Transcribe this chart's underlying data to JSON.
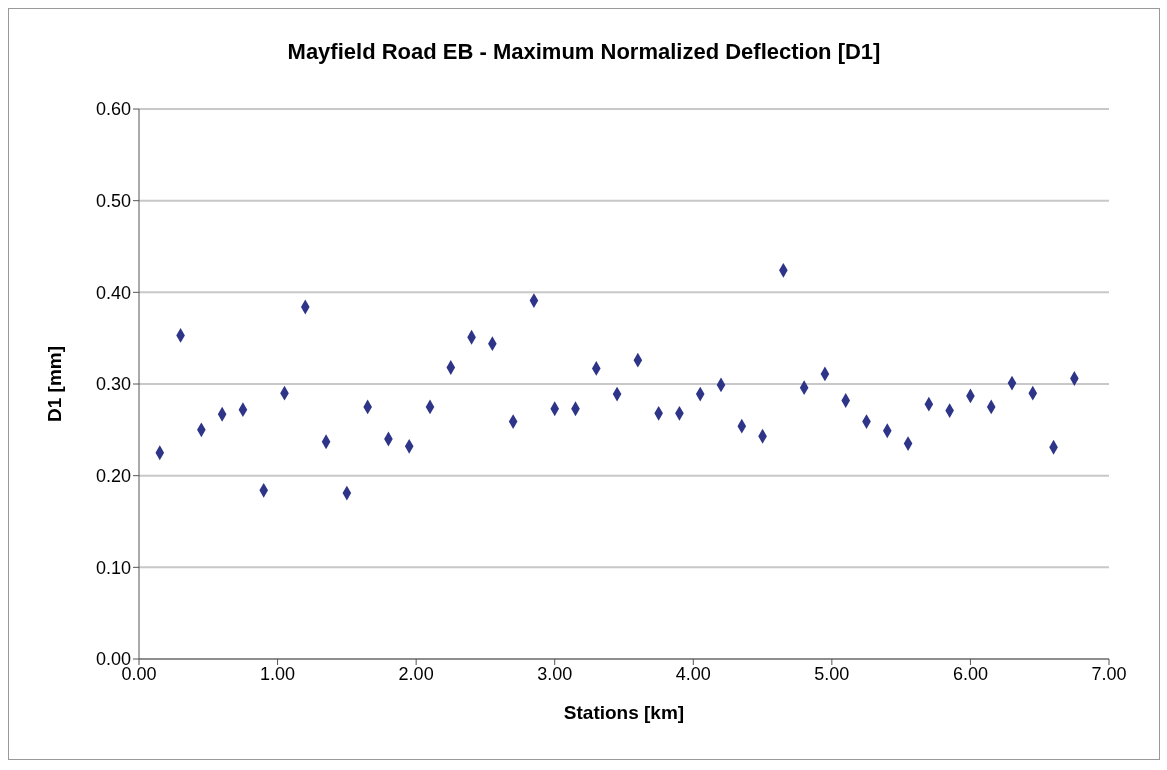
{
  "chart_data": {
    "type": "scatter",
    "title": "Mayfield Road EB - Maximum Normalized Deflection [D1]",
    "xlabel": "Stations [km]",
    "ylabel": "D1 [mm]",
    "x": [
      0.15,
      0.3,
      0.45,
      0.6,
      0.75,
      0.9,
      1.05,
      1.2,
      1.35,
      1.5,
      1.65,
      1.8,
      1.95,
      2.1,
      2.25,
      2.4,
      2.55,
      2.7,
      2.85,
      3.0,
      3.15,
      3.3,
      3.45,
      3.6,
      3.75,
      3.9,
      4.05,
      4.2,
      4.35,
      4.5,
      4.65,
      4.8,
      4.95,
      5.1,
      5.25,
      5.4,
      5.55,
      5.7,
      5.85,
      6.0,
      6.15,
      6.3,
      6.45,
      6.6,
      6.75
    ],
    "series": [
      {
        "color": "#2e3487",
        "values": [
          0.225,
          0.353,
          0.25,
          0.267,
          0.272,
          0.184,
          0.29,
          0.384,
          0.237,
          0.181,
          0.275,
          0.24,
          0.232,
          0.275,
          0.318,
          0.351,
          0.344,
          0.259,
          0.391,
          0.273,
          0.273,
          0.317,
          0.289,
          0.326,
          0.268,
          0.268,
          0.289,
          0.299,
          0.254,
          0.243,
          0.424,
          0.296,
          0.311,
          0.282,
          0.259,
          0.249,
          0.235,
          0.278,
          0.271,
          0.287,
          0.275,
          0.301,
          0.29,
          0.231,
          0.306
        ]
      }
    ],
    "xlim": [
      0,
      7
    ],
    "xticks": [
      {
        "value": 0,
        "label": "0.00"
      },
      {
        "value": 1,
        "label": "1.00"
      },
      {
        "value": 2,
        "label": "2.00"
      },
      {
        "value": 3,
        "label": "3.00"
      },
      {
        "value": 4,
        "label": "4.00"
      },
      {
        "value": 5,
        "label": "5.00"
      },
      {
        "value": 6,
        "label": "6.00"
      },
      {
        "value": 7,
        "label": "7.00"
      }
    ],
    "ylim": [
      0,
      0.6
    ],
    "yticks": [
      {
        "value": 0,
        "label": "0.00"
      },
      {
        "value": 0.1,
        "label": "0.10"
      },
      {
        "value": 0.2,
        "label": "0.20"
      },
      {
        "value": 0.3,
        "label": "0.30"
      },
      {
        "value": 0.4,
        "label": "0.40"
      },
      {
        "value": 0.5,
        "label": "0.50"
      },
      {
        "value": 0.6,
        "label": "0.60"
      }
    ],
    "grid": "y",
    "marker": "diamond"
  }
}
